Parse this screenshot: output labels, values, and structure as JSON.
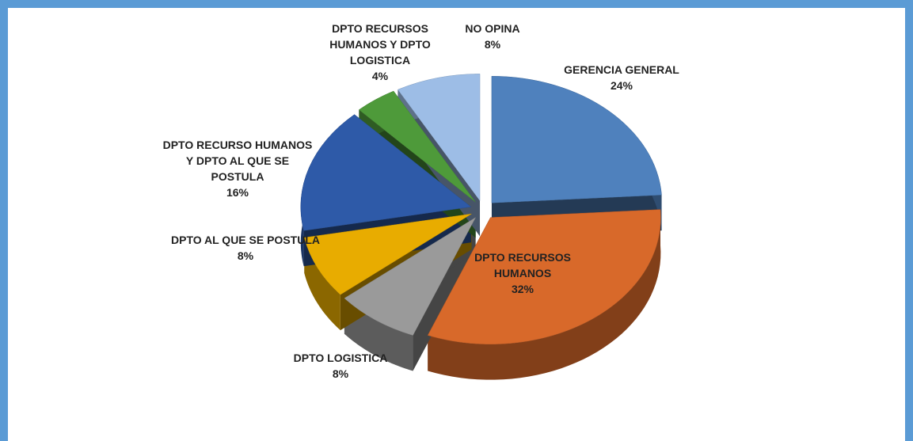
{
  "chart_data": {
    "type": "pie",
    "categories": [
      "GERENCIA GENERAL",
      "DPTO RECURSOS HUMANOS",
      "DPTO LOGISTICA",
      "DPTO AL QUE SE POSTULA",
      "DPTO RECURSO HUMANOS Y DPTO AL QUE SE POSTULA",
      "DPTO RECURSOS HUMANOS Y DPTO LOGISTICA",
      "NO OPINA"
    ],
    "values": [
      24,
      32,
      8,
      8,
      16,
      4,
      8
    ],
    "value_labels": [
      "24%",
      "32%",
      "8%",
      "8%",
      "16%",
      "4%",
      "8%"
    ],
    "colors": [
      "#4f81bd",
      "#d8692a",
      "#9a9a9a",
      "#e8ac00",
      "#2e5aa8",
      "#4e9a3a",
      "#9dbde6"
    ]
  }
}
